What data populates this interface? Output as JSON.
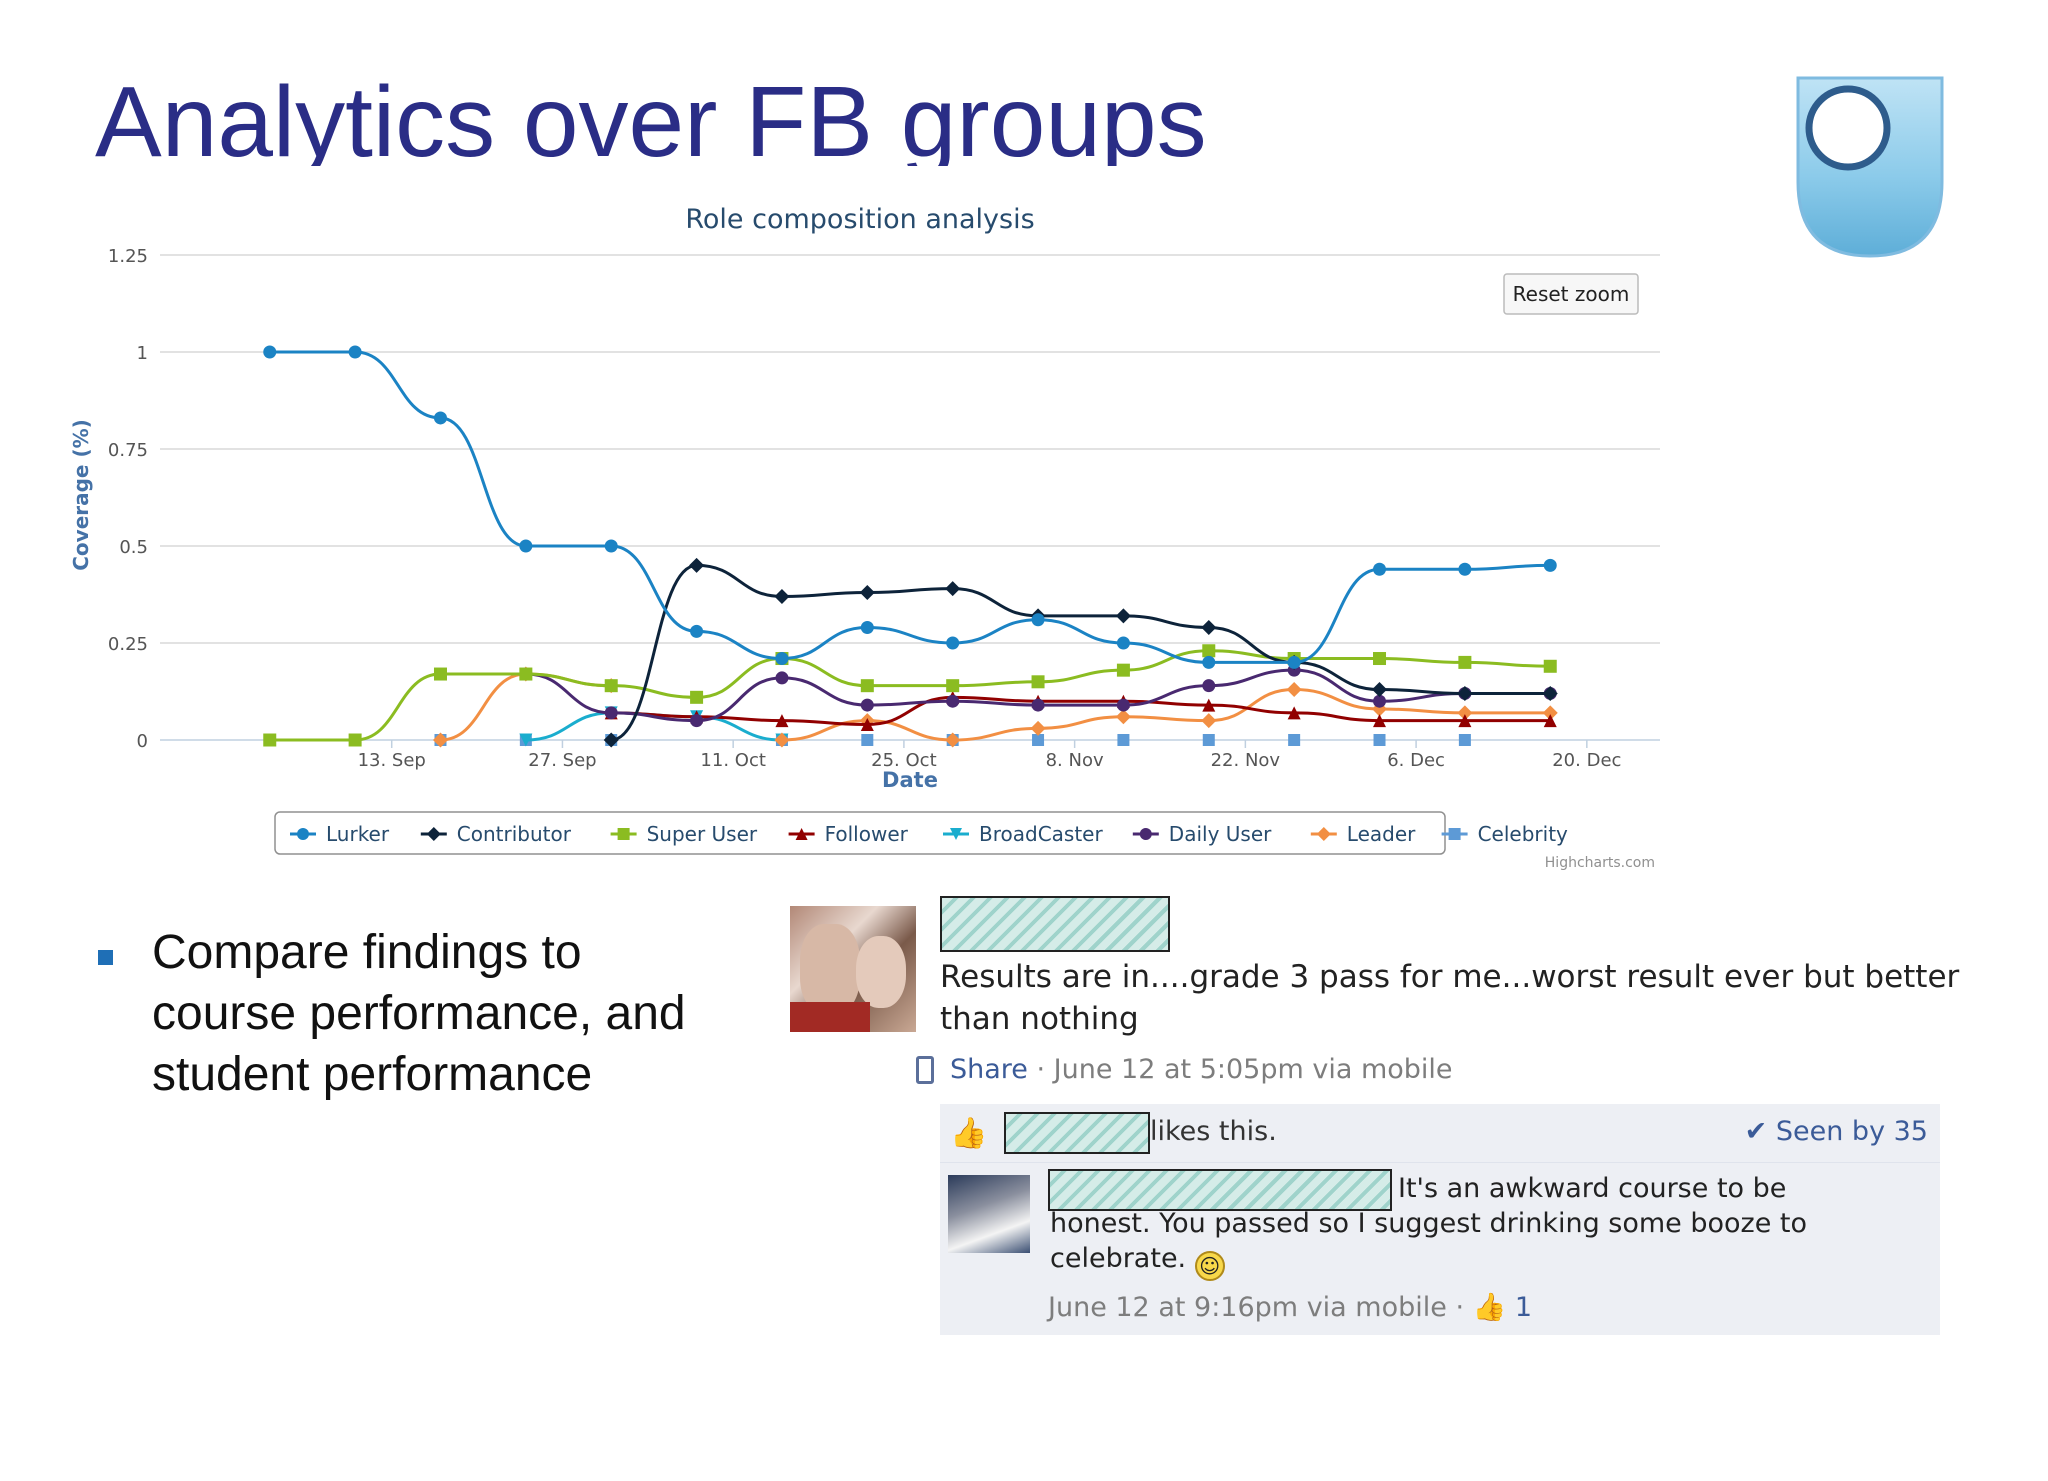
{
  "slide": {
    "title": "Analytics over FB groups",
    "bullet": "Compare findings to course performance, and student performance"
  },
  "chart_data": {
    "type": "line",
    "title": "Role composition analysis",
    "xlabel": "Date",
    "ylabel": "Coverage (%)",
    "x_ticks": [
      "13. Sep",
      "27. Sep",
      "11. Oct",
      "25. Oct",
      "8. Nov",
      "22. Nov",
      "6. Dec",
      "20. Dec"
    ],
    "y_ticks": [
      "0",
      "0.25",
      "0.5",
      "0.75",
      "1",
      "1.25"
    ],
    "ylim": [
      0,
      1.25
    ],
    "reset_zoom_label": "Reset zoom",
    "credits": "Highcharts.com",
    "legend_placement": "bottom-center",
    "grid": "horizontal",
    "x": [
      "2012-09-03",
      "2012-09-10",
      "2012-09-17",
      "2012-09-24",
      "2012-10-01",
      "2012-10-08",
      "2012-10-15",
      "2012-10-22",
      "2012-10-29",
      "2012-11-05",
      "2012-11-12",
      "2012-11-19",
      "2012-11-26",
      "2012-12-03",
      "2012-12-10",
      "2012-12-17"
    ],
    "series": [
      {
        "name": "Lurker",
        "color": "#1b83c4",
        "marker": "circle",
        "values": [
          1,
          1,
          0.83,
          0.5,
          0.5,
          0.28,
          0.21,
          0.29,
          0.25,
          0.31,
          0.25,
          0.2,
          0.2,
          0.44,
          0.44,
          0.45
        ]
      },
      {
        "name": "Contributor",
        "color": "#0d233a",
        "marker": "diamond",
        "values": [
          null,
          null,
          null,
          null,
          0,
          0.45,
          0.37,
          0.38,
          0.39,
          0.32,
          0.32,
          0.29,
          0.2,
          0.13,
          0.12,
          0.12
        ]
      },
      {
        "name": "Super User",
        "color": "#8bbc21",
        "marker": "square",
        "values": [
          0,
          0,
          0.17,
          0.17,
          0.14,
          0.11,
          0.21,
          0.14,
          0.14,
          0.15,
          0.18,
          0.23,
          0.21,
          0.21,
          0.2,
          0.19
        ]
      },
      {
        "name": "Follower",
        "color": "#910000",
        "marker": "triangle",
        "values": [
          null,
          null,
          null,
          null,
          0.07,
          0.06,
          0.05,
          0.04,
          0.11,
          0.1,
          0.1,
          0.09,
          0.07,
          0.05,
          0.05,
          0.05
        ]
      },
      {
        "name": "BroadCaster",
        "color": "#1aadce",
        "marker": "triangle-down",
        "values": [
          null,
          null,
          null,
          0,
          0.07,
          0.06,
          0,
          null,
          null,
          null,
          null,
          null,
          null,
          null,
          null,
          null
        ]
      },
      {
        "name": "Daily User",
        "color": "#492970",
        "marker": "circle",
        "values": [
          null,
          null,
          null,
          0.17,
          0.07,
          0.05,
          0.16,
          0.09,
          0.1,
          0.09,
          0.09,
          0.14,
          0.18,
          0.1,
          0.12,
          0.12
        ]
      },
      {
        "name": "Leader",
        "color": "#f28f43",
        "marker": "diamond",
        "values": [
          null,
          null,
          0,
          0.17,
          0.14,
          null,
          0,
          0.05,
          0,
          0.03,
          0.06,
          0.05,
          0.13,
          0.08,
          0.07,
          0.07
        ]
      },
      {
        "name": "Celebrity",
        "color": "#5d9ad6",
        "marker": "square",
        "values": [
          null,
          0,
          0,
          0,
          0,
          null,
          0,
          0,
          0,
          0,
          0,
          0,
          0,
          0,
          0,
          null
        ]
      }
    ]
  },
  "fb_post": {
    "text": "Results are in....grade 3 pass for me...worst result ever but better than nothing",
    "share_label": "Share",
    "meta": " · June 12 at 5:05pm via mobile",
    "likes_text": "likes this.",
    "seen_by": "✔ Seen by 35",
    "comment": {
      "text": "It's an awkward course to be honest. You passed so I suggest drinking some booze to celebrate.",
      "meta": "June 12 at 9:16pm via mobile · ",
      "like_count": "1"
    }
  }
}
